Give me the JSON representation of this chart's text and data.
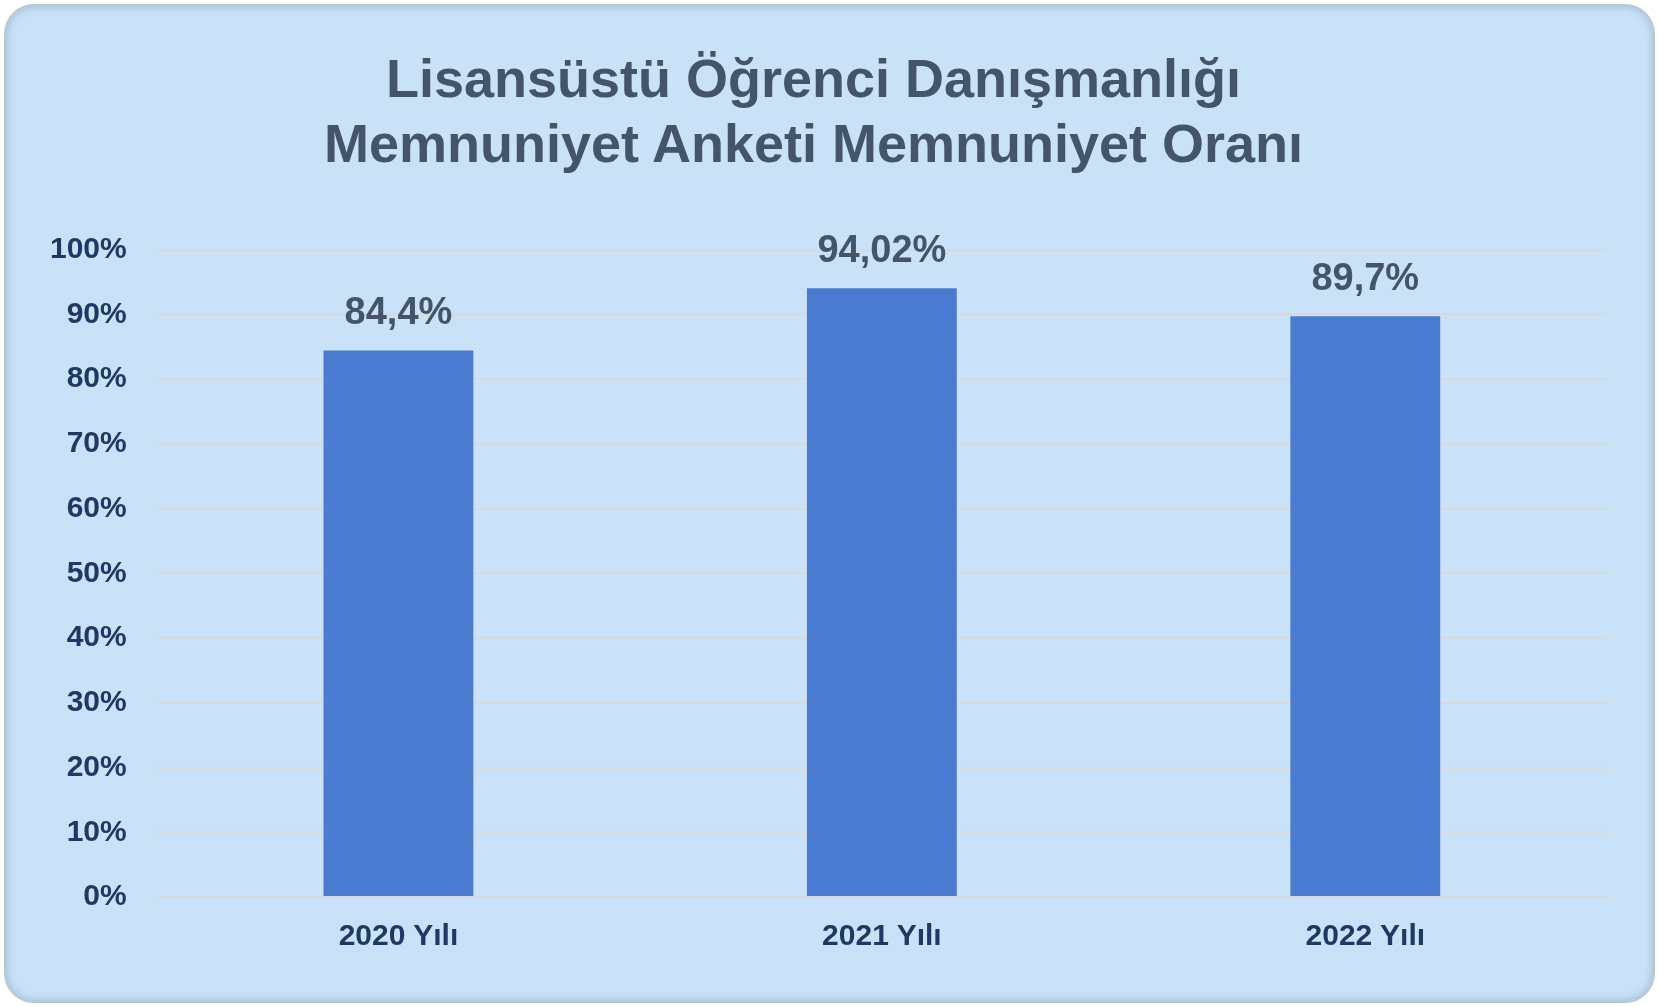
{
  "chart_data": {
    "type": "bar",
    "title": [
      "Lisansüstü Öğrenci Danışmanlığı",
      "Memnuniyet Anketi Memnuniyet Oranı"
    ],
    "categories": [
      "2020 Yılı",
      "2021 Yılı",
      "2022 Yılı"
    ],
    "values": [
      84.4,
      94.02,
      89.7
    ],
    "value_labels": [
      "84,4%",
      "94,02%",
      "89,7%"
    ],
    "color": "#4a7bd0",
    "ylim": [
      0,
      100
    ],
    "yticks": [
      {
        "value": 0,
        "label": "0%"
      },
      {
        "value": 10,
        "label": "10%"
      },
      {
        "value": 20,
        "label": "20%"
      },
      {
        "value": 30,
        "label": "30%"
      },
      {
        "value": 40,
        "label": "40%"
      },
      {
        "value": 50,
        "label": "50%"
      },
      {
        "value": 60,
        "label": "60%"
      },
      {
        "value": 70,
        "label": "70%"
      },
      {
        "value": 80,
        "label": "80%"
      },
      {
        "value": 90,
        "label": "90%"
      },
      {
        "value": 100,
        "label": "100%"
      }
    ],
    "grid": "y"
  }
}
